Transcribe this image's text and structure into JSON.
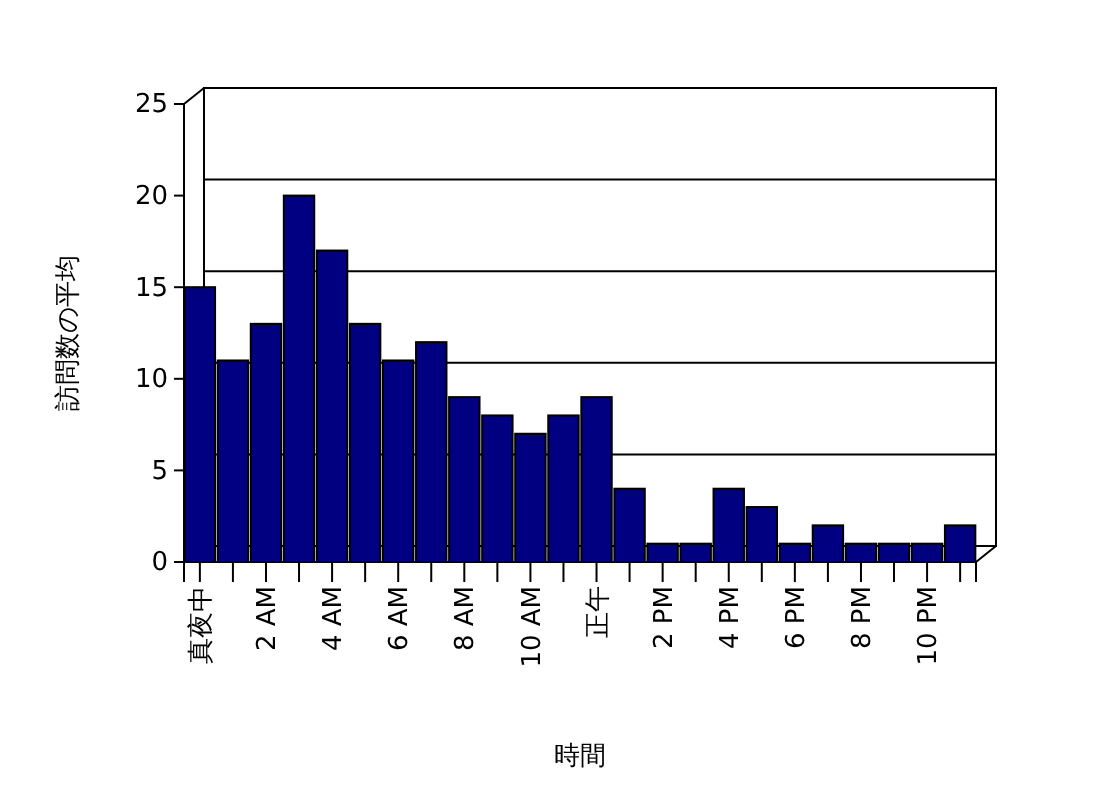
{
  "chart_data": {
    "type": "bar",
    "xlabel": "時間",
    "ylabel": "訪問数の平均",
    "categories": [
      "真夜中",
      null,
      "2 AM",
      null,
      "4 AM",
      null,
      "6 AM",
      null,
      "8 AM",
      null,
      "10 AM",
      null,
      "正午",
      null,
      "2 PM",
      null,
      "4 PM",
      null,
      "6 PM",
      null,
      "8 PM",
      null,
      "10 PM",
      null
    ],
    "values": [
      15,
      11,
      13,
      20,
      17,
      13,
      11,
      12,
      9,
      8,
      7,
      8,
      9,
      4,
      1,
      1,
      4,
      3,
      1,
      2,
      1,
      1,
      1,
      2
    ],
    "color": "#000080",
    "ylim": [
      0,
      25
    ],
    "yticks": [
      0,
      5,
      10,
      15,
      20,
      25
    ],
    "grid": "y"
  }
}
